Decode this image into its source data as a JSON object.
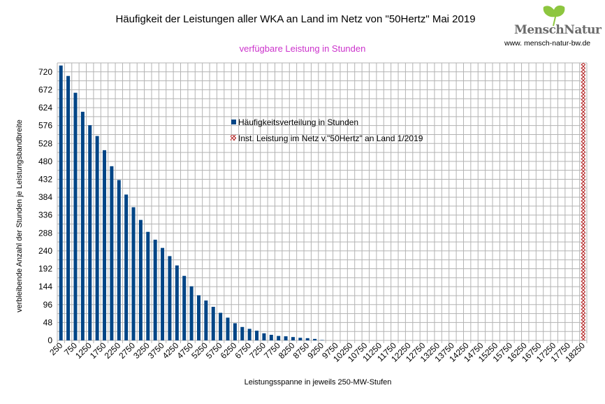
{
  "chart_data": {
    "type": "bar",
    "title": "Häufigkeit der Leistungen aller WKA an Land im Netz von \"50Hertz\" Mai 2019",
    "subtitle": "verfügbare Leistung in Stunden",
    "xlabel": "Leistungsspanne in jeweils 250-MW-Stufen",
    "ylabel": "verbleibende Anzahl der Stunden je Leistungsbandbreite",
    "ylim": [
      0,
      744
    ],
    "yticks": [
      0,
      48,
      96,
      144,
      192,
      240,
      288,
      336,
      384,
      432,
      480,
      528,
      576,
      624,
      672,
      720
    ],
    "grid": true,
    "legend_position": "top-center",
    "categories_start": 250,
    "categories_step": 250,
    "categories_end": 18250,
    "x_tick_labels": [
      "250",
      "750",
      "1250",
      "1750",
      "2250",
      "2750",
      "3250",
      "3750",
      "4250",
      "4750",
      "5250",
      "5750",
      "6250",
      "6750",
      "7250",
      "7750",
      "8250",
      "8750",
      "9250",
      "9750",
      "10250",
      "10750",
      "11250",
      "11750",
      "12250",
      "12750",
      "13250",
      "13750",
      "14250",
      "14750",
      "15250",
      "15750",
      "16250",
      "16750",
      "17250",
      "17750",
      "18250"
    ],
    "series": [
      {
        "name": "Häufigkeitsverteilung in Stunden",
        "color": "#004586",
        "values": [
          737,
          709,
          664,
          613,
          577,
          548,
          510,
          467,
          430,
          391,
          357,
          323,
          291,
          270,
          248,
          226,
          201,
          173,
          145,
          121,
          107,
          90,
          74,
          61,
          46,
          36,
          31,
          26,
          19,
          15,
          12,
          11,
          9,
          7,
          6,
          4,
          1
        ]
      },
      {
        "name": "Inst. Leistung im Netz v.\"50Hertz\" an Land 1/2019",
        "color": "#b22222",
        "pattern": "hatched",
        "category": 18250,
        "value": 744
      }
    ]
  },
  "logo": {
    "name": "MenschNatur",
    "url": "www. mensch-natur-bw.de"
  }
}
